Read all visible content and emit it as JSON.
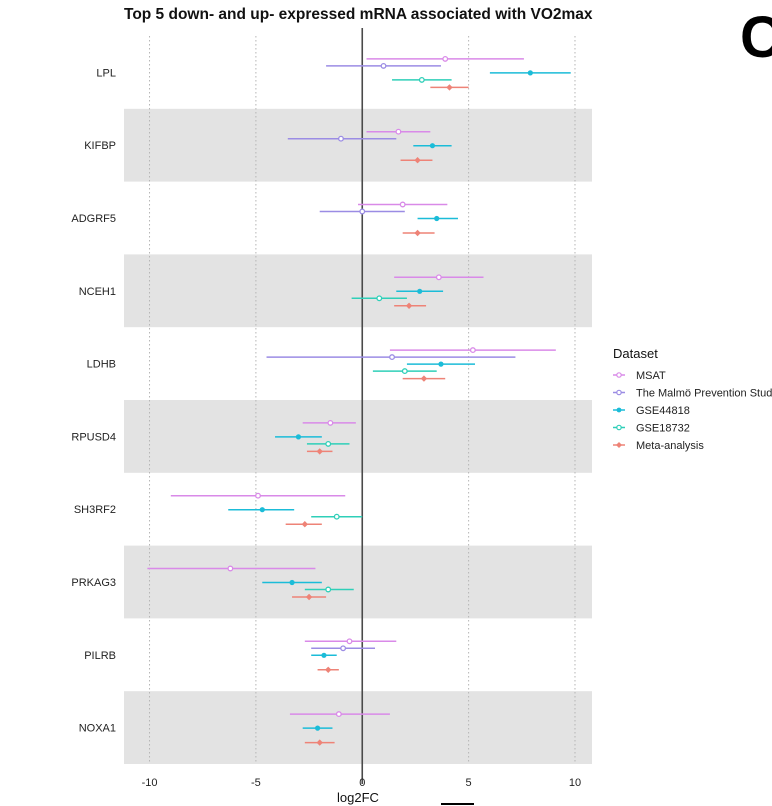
{
  "panel_letter": "C",
  "chart_data": {
    "type": "forest",
    "title": "Top 5 down- and up- expressed mRNA associated with VO2max",
    "xlabel": "log2FC",
    "ylabel": "",
    "xlim": [
      -11.2,
      10.8
    ],
    "x_ticks": [
      -10,
      -5,
      0,
      5,
      10
    ],
    "x_tick_labels": [
      "-10",
      "-5",
      "0",
      "5",
      "10"
    ],
    "grid": "vertical dotted",
    "reference_line": 0,
    "categories": [
      "LPL",
      "KIFBP",
      "ADGRF5",
      "NCEH1",
      "LDHB",
      "RPUSD4",
      "SH3RF2",
      "PRKAG3",
      "PILRB",
      "NOXA1"
    ],
    "shaded_rows": [
      1,
      3,
      5,
      7,
      9
    ],
    "legend_title": "Dataset",
    "legend_position": "right",
    "series": [
      {
        "name": "MSAT",
        "color": "#d98ae8",
        "marker": "open-circle",
        "points": [
          {
            "row": 0,
            "est": 3.9,
            "lo": 0.2,
            "hi": 7.6
          },
          {
            "row": 1,
            "est": 1.7,
            "lo": 0.2,
            "hi": 3.2
          },
          {
            "row": 2,
            "est": 1.9,
            "lo": -0.2,
            "hi": 4.0
          },
          {
            "row": 3,
            "est": 3.6,
            "lo": 1.5,
            "hi": 5.7
          },
          {
            "row": 4,
            "est": 5.2,
            "lo": 1.3,
            "hi": 9.1
          },
          {
            "row": 5,
            "est": -1.5,
            "lo": -2.8,
            "hi": -0.3
          },
          {
            "row": 6,
            "est": -4.9,
            "lo": -9.0,
            "hi": -0.8
          },
          {
            "row": 7,
            "est": -6.2,
            "lo": -10.1,
            "hi": -2.2
          },
          {
            "row": 8,
            "est": -0.6,
            "lo": -2.7,
            "hi": 1.6
          },
          {
            "row": 9,
            "est": -1.1,
            "lo": -3.4,
            "hi": 1.3
          }
        ]
      },
      {
        "name": "The Malmö Prevention Study",
        "color": "#9b8ce4",
        "marker": "open-circle",
        "points": [
          {
            "row": 0,
            "est": 1.0,
            "lo": -1.7,
            "hi": 3.7
          },
          {
            "row": 1,
            "est": -1.0,
            "lo": -3.5,
            "hi": 1.6
          },
          {
            "row": 2,
            "est": 0.0,
            "lo": -2.0,
            "hi": 2.0
          },
          {
            "row": 4,
            "est": 1.4,
            "lo": -4.5,
            "hi": 7.2
          },
          {
            "row": 8,
            "est": -0.9,
            "lo": -2.4,
            "hi": 0.6
          }
        ]
      },
      {
        "name": "GSE44818",
        "color": "#1bbcd8",
        "marker": "filled-circle",
        "points": [
          {
            "row": 0,
            "est": 7.9,
            "lo": 6.0,
            "hi": 9.8
          },
          {
            "row": 1,
            "est": 3.3,
            "lo": 2.4,
            "hi": 4.2
          },
          {
            "row": 2,
            "est": 3.5,
            "lo": 2.6,
            "hi": 4.5
          },
          {
            "row": 3,
            "est": 2.7,
            "lo": 1.6,
            "hi": 3.8
          },
          {
            "row": 4,
            "est": 3.7,
            "lo": 2.1,
            "hi": 5.3
          },
          {
            "row": 5,
            "est": -3.0,
            "lo": -4.1,
            "hi": -1.9
          },
          {
            "row": 6,
            "est": -4.7,
            "lo": -6.3,
            "hi": -3.2
          },
          {
            "row": 7,
            "est": -3.3,
            "lo": -4.7,
            "hi": -1.9
          },
          {
            "row": 8,
            "est": -1.8,
            "lo": -2.4,
            "hi": -1.2
          },
          {
            "row": 9,
            "est": -2.1,
            "lo": -2.8,
            "hi": -1.4
          }
        ]
      },
      {
        "name": "GSE18732",
        "color": "#2fcfb8",
        "marker": "open-circle",
        "points": [
          {
            "row": 0,
            "est": 2.8,
            "lo": 1.4,
            "hi": 4.2
          },
          {
            "row": 3,
            "est": 0.8,
            "lo": -0.5,
            "hi": 2.1
          },
          {
            "row": 4,
            "est": 2.0,
            "lo": 0.5,
            "hi": 3.5
          },
          {
            "row": 5,
            "est": -1.6,
            "lo": -2.6,
            "hi": -0.6
          },
          {
            "row": 6,
            "est": -1.2,
            "lo": -2.4,
            "hi": 0.0
          },
          {
            "row": 7,
            "est": -1.6,
            "lo": -2.7,
            "hi": -0.4
          }
        ]
      },
      {
        "name": "Meta-analysis",
        "color": "#ee8377",
        "marker": "filled-diamond",
        "points": [
          {
            "row": 0,
            "est": 4.1,
            "lo": 3.2,
            "hi": 5.0
          },
          {
            "row": 1,
            "est": 2.6,
            "lo": 1.8,
            "hi": 3.3
          },
          {
            "row": 2,
            "est": 2.6,
            "lo": 1.9,
            "hi": 3.4
          },
          {
            "row": 3,
            "est": 2.2,
            "lo": 1.5,
            "hi": 3.0
          },
          {
            "row": 4,
            "est": 2.9,
            "lo": 1.9,
            "hi": 3.9
          },
          {
            "row": 5,
            "est": -2.0,
            "lo": -2.6,
            "hi": -1.4
          },
          {
            "row": 6,
            "est": -2.7,
            "lo": -3.6,
            "hi": -1.9
          },
          {
            "row": 7,
            "est": -2.5,
            "lo": -3.3,
            "hi": -1.7
          },
          {
            "row": 8,
            "est": -1.6,
            "lo": -2.1,
            "hi": -1.1
          },
          {
            "row": 9,
            "est": -2.0,
            "lo": -2.7,
            "hi": -1.3
          }
        ]
      }
    ]
  }
}
